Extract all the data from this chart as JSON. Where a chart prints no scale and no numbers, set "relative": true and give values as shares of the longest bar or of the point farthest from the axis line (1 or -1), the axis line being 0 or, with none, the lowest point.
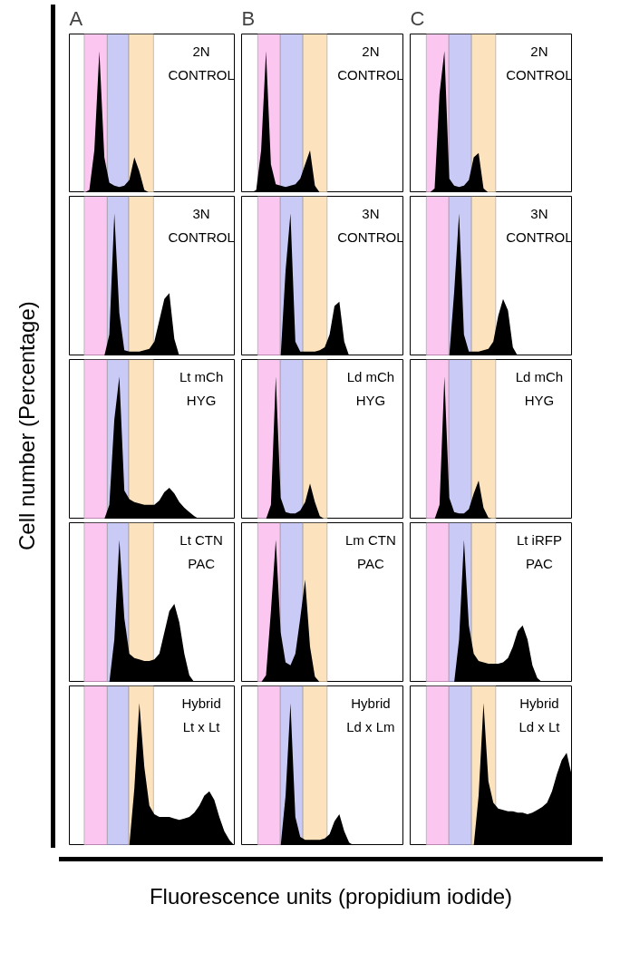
{
  "chart_data": [
    {
      "type": "area",
      "title": "A",
      "relative": true,
      "color": "#000000",
      "tick_labels": false,
      "annotations": [
        "2N",
        "CONTROL"
      ],
      "categories": [
        null,
        null,
        null,
        null,
        null,
        null,
        null,
        null,
        null,
        null,
        null,
        null,
        null,
        null,
        null,
        null,
        null,
        null,
        null,
        null,
        null,
        null,
        null,
        null,
        null,
        null,
        null,
        null,
        null,
        null,
        null,
        null,
        null,
        null
      ],
      "values": [
        0,
        0,
        0,
        0,
        0.02,
        0.3,
        1,
        0.25,
        0.07,
        0.05,
        0.04,
        0.05,
        0.09,
        0.25,
        0.15,
        0.02,
        0,
        0,
        0,
        0,
        0,
        0,
        0,
        0,
        0,
        0,
        0,
        0,
        0,
        0,
        0,
        0,
        0,
        0
      ]
    },
    {
      "type": "area",
      "title": "B",
      "relative": true,
      "color": "#000000",
      "tick_labels": false,
      "annotations": [
        "2N",
        "CONTROL"
      ],
      "categories": [
        null,
        null,
        null,
        null,
        null,
        null,
        null,
        null,
        null,
        null,
        null,
        null,
        null,
        null,
        null,
        null,
        null,
        null,
        null,
        null,
        null,
        null,
        null,
        null,
        null,
        null,
        null,
        null,
        null,
        null,
        null,
        null,
        null,
        null
      ],
      "values": [
        0,
        0,
        0,
        0.02,
        0.3,
        1,
        0.2,
        0.06,
        0.05,
        0.04,
        0.05,
        0.06,
        0.1,
        0.2,
        0.3,
        0.05,
        0,
        0,
        0,
        0,
        0,
        0,
        0,
        0,
        0,
        0,
        0,
        0,
        0,
        0,
        0,
        0,
        0,
        0
      ]
    },
    {
      "type": "area",
      "title": "C",
      "relative": true,
      "color": "#000000",
      "tick_labels": false,
      "annotations": [
        "2N",
        "CONTROL"
      ],
      "categories": [
        null,
        null,
        null,
        null,
        null,
        null,
        null,
        null,
        null,
        null,
        null,
        null,
        null,
        null,
        null,
        null,
        null,
        null,
        null,
        null,
        null,
        null,
        null,
        null,
        null,
        null,
        null,
        null,
        null,
        null,
        null,
        null,
        null,
        null
      ],
      "values": [
        0,
        0,
        0,
        0,
        0,
        0.03,
        0.7,
        1,
        0.1,
        0.05,
        0.04,
        0.05,
        0.09,
        0.25,
        0.28,
        0.03,
        0,
        0,
        0,
        0,
        0,
        0,
        0,
        0,
        0,
        0,
        0,
        0,
        0,
        0,
        0,
        0,
        0,
        0
      ]
    },
    {
      "type": "area",
      "relative": true,
      "color": "#000000",
      "tick_labels": false,
      "annotations": [
        "3N",
        "CONTROL"
      ],
      "categories": [
        null,
        null,
        null,
        null,
        null,
        null,
        null,
        null,
        null,
        null,
        null,
        null,
        null,
        null,
        null,
        null,
        null,
        null,
        null,
        null,
        null,
        null,
        null,
        null,
        null,
        null,
        null,
        null,
        null,
        null,
        null,
        null,
        null,
        null
      ],
      "values": [
        0,
        0,
        0,
        0,
        0,
        0,
        0,
        0,
        0.15,
        1,
        0.3,
        0.04,
        0.03,
        0.03,
        0.03,
        0.04,
        0.05,
        0.1,
        0.25,
        0.4,
        0.44,
        0.12,
        0,
        0,
        0,
        0,
        0,
        0,
        0,
        0,
        0,
        0,
        0,
        0
      ]
    },
    {
      "type": "area",
      "relative": true,
      "color": "#000000",
      "tick_labels": false,
      "annotations": [
        "3N",
        "CONTROL"
      ],
      "categories": [
        null,
        null,
        null,
        null,
        null,
        null,
        null,
        null,
        null,
        null,
        null,
        null,
        null,
        null,
        null,
        null,
        null,
        null,
        null,
        null,
        null,
        null,
        null,
        null,
        null,
        null,
        null,
        null,
        null,
        null,
        null,
        null,
        null,
        null
      ],
      "values": [
        0,
        0,
        0,
        0,
        0,
        0,
        0,
        0,
        0,
        0.6,
        1,
        0.1,
        0.03,
        0.03,
        0.03,
        0.03,
        0.04,
        0.06,
        0.15,
        0.35,
        0.38,
        0.1,
        0,
        0,
        0,
        0,
        0,
        0,
        0,
        0,
        0,
        0,
        0,
        0
      ]
    },
    {
      "type": "area",
      "relative": true,
      "color": "#000000",
      "tick_labels": false,
      "annotations": [
        "3N",
        "CONTROL"
      ],
      "categories": [
        null,
        null,
        null,
        null,
        null,
        null,
        null,
        null,
        null,
        null,
        null,
        null,
        null,
        null,
        null,
        null,
        null,
        null,
        null,
        null,
        null,
        null,
        null,
        null,
        null,
        null,
        null,
        null,
        null,
        null,
        null,
        null,
        null,
        null
      ],
      "values": [
        0,
        0,
        0,
        0,
        0,
        0,
        0,
        0,
        0,
        0.45,
        1,
        0.15,
        0.03,
        0.03,
        0.03,
        0.04,
        0.05,
        0.1,
        0.28,
        0.4,
        0.32,
        0.06,
        0,
        0,
        0,
        0,
        0,
        0,
        0,
        0,
        0,
        0,
        0,
        0
      ]
    },
    {
      "type": "area",
      "relative": true,
      "color": "#000000",
      "tick_labels": false,
      "annotations": [
        "Lt mCh",
        "HYG"
      ],
      "categories": [
        null,
        null,
        null,
        null,
        null,
        null,
        null,
        null,
        null,
        null,
        null,
        null,
        null,
        null,
        null,
        null,
        null,
        null,
        null,
        null,
        null,
        null,
        null,
        null,
        null,
        null,
        null,
        null,
        null,
        null,
        null,
        null,
        null,
        null
      ],
      "values": [
        0,
        0,
        0,
        0,
        0,
        0,
        0,
        0,
        0.1,
        0.7,
        1,
        0.2,
        0.14,
        0.12,
        0.11,
        0.1,
        0.1,
        0.1,
        0.13,
        0.19,
        0.22,
        0.18,
        0.12,
        0.08,
        0.05,
        0.02,
        0,
        0,
        0,
        0,
        0,
        0,
        0,
        0
      ]
    },
    {
      "type": "area",
      "relative": true,
      "color": "#000000",
      "tick_labels": false,
      "annotations": [
        "Ld mCh",
        "HYG"
      ],
      "categories": [
        null,
        null,
        null,
        null,
        null,
        null,
        null,
        null,
        null,
        null,
        null,
        null,
        null,
        null,
        null,
        null,
        null,
        null,
        null,
        null,
        null,
        null,
        null,
        null,
        null,
        null,
        null,
        null,
        null,
        null,
        null,
        null,
        null,
        null
      ],
      "values": [
        0,
        0,
        0,
        0,
        0,
        0,
        0.1,
        1,
        0.15,
        0.05,
        0.04,
        0.04,
        0.06,
        0.12,
        0.25,
        0.12,
        0.02,
        0,
        0,
        0,
        0,
        0,
        0,
        0,
        0,
        0,
        0,
        0,
        0,
        0,
        0,
        0,
        0,
        0
      ]
    },
    {
      "type": "area",
      "relative": true,
      "color": "#000000",
      "tick_labels": false,
      "annotations": [
        "Ld mCh",
        "HYG"
      ],
      "categories": [
        null,
        null,
        null,
        null,
        null,
        null,
        null,
        null,
        null,
        null,
        null,
        null,
        null,
        null,
        null,
        null,
        null,
        null,
        null,
        null,
        null,
        null,
        null,
        null,
        null,
        null,
        null,
        null,
        null,
        null,
        null,
        null,
        null,
        null
      ],
      "values": [
        0,
        0,
        0,
        0,
        0,
        0,
        0.1,
        1,
        0.15,
        0.05,
        0.04,
        0.04,
        0.07,
        0.18,
        0.27,
        0.08,
        0.01,
        0,
        0,
        0,
        0,
        0,
        0,
        0,
        0,
        0,
        0,
        0,
        0,
        0,
        0,
        0,
        0,
        0
      ]
    },
    {
      "type": "area",
      "relative": true,
      "color": "#000000",
      "tick_labels": false,
      "annotations": [
        "Lt CTN",
        "PAC"
      ],
      "categories": [
        null,
        null,
        null,
        null,
        null,
        null,
        null,
        null,
        null,
        null,
        null,
        null,
        null,
        null,
        null,
        null,
        null,
        null,
        null,
        null,
        null,
        null,
        null,
        null,
        null,
        null,
        null,
        null,
        null,
        null,
        null,
        null,
        null,
        null
      ],
      "values": [
        0,
        0,
        0,
        0,
        0,
        0,
        0,
        0,
        0,
        0.3,
        1,
        0.45,
        0.2,
        0.17,
        0.16,
        0.15,
        0.15,
        0.16,
        0.2,
        0.35,
        0.5,
        0.55,
        0.42,
        0.2,
        0.05,
        0,
        0,
        0,
        0,
        0,
        0,
        0,
        0,
        0
      ]
    },
    {
      "type": "area",
      "relative": true,
      "color": "#000000",
      "tick_labels": false,
      "annotations": [
        "Lm CTN",
        "PAC"
      ],
      "categories": [
        null,
        null,
        null,
        null,
        null,
        null,
        null,
        null,
        null,
        null,
        null,
        null,
        null,
        null,
        null,
        null,
        null,
        null,
        null,
        null,
        null,
        null,
        null,
        null,
        null,
        null,
        null,
        null,
        null,
        null,
        null,
        null,
        null,
        null
      ],
      "values": [
        0,
        0,
        0,
        0,
        0,
        0.05,
        0.5,
        1,
        0.35,
        0.14,
        0.12,
        0.2,
        0.45,
        0.72,
        0.25,
        0.04,
        0,
        0,
        0,
        0,
        0,
        0,
        0,
        0,
        0,
        0,
        0,
        0,
        0,
        0,
        0,
        0,
        0,
        0
      ]
    },
    {
      "type": "area",
      "relative": true,
      "color": "#000000",
      "tick_labels": false,
      "annotations": [
        "Lt iRFP",
        "PAC"
      ],
      "categories": [
        null,
        null,
        null,
        null,
        null,
        null,
        null,
        null,
        null,
        null,
        null,
        null,
        null,
        null,
        null,
        null,
        null,
        null,
        null,
        null,
        null,
        null,
        null,
        null,
        null,
        null,
        null,
        null,
        null,
        null,
        null,
        null,
        null,
        null
      ],
      "values": [
        0,
        0,
        0,
        0,
        0,
        0,
        0,
        0,
        0,
        0,
        0.3,
        1,
        0.4,
        0.2,
        0.15,
        0.14,
        0.13,
        0.13,
        0.13,
        0.14,
        0.17,
        0.25,
        0.36,
        0.4,
        0.3,
        0.12,
        0.03,
        0,
        0,
        0,
        0,
        0,
        0,
        0
      ]
    },
    {
      "type": "area",
      "relative": true,
      "color": "#000000",
      "tick_labels": false,
      "annotations": [
        "Hybrid",
        "Lt x Lt"
      ],
      "categories": [
        null,
        null,
        null,
        null,
        null,
        null,
        null,
        null,
        null,
        null,
        null,
        null,
        null,
        null,
        null,
        null,
        null,
        null,
        null,
        null,
        null,
        null,
        null,
        null,
        null,
        null,
        null,
        null,
        null,
        null,
        null,
        null,
        null,
        null
      ],
      "values": [
        0,
        0,
        0,
        0,
        0,
        0,
        0,
        0,
        0,
        0,
        0,
        0,
        0,
        0.4,
        1,
        0.55,
        0.28,
        0.22,
        0.2,
        0.2,
        0.2,
        0.19,
        0.18,
        0.19,
        0.2,
        0.23,
        0.28,
        0.35,
        0.38,
        0.32,
        0.2,
        0.1,
        0.04,
        0
      ]
    },
    {
      "type": "area",
      "relative": true,
      "color": "#000000",
      "tick_labels": false,
      "annotations": [
        "Hybrid",
        "Ld x Lm"
      ],
      "categories": [
        null,
        null,
        null,
        null,
        null,
        null,
        null,
        null,
        null,
        null,
        null,
        null,
        null,
        null,
        null,
        null,
        null,
        null,
        null,
        null,
        null,
        null,
        null,
        null,
        null,
        null,
        null,
        null,
        null,
        null,
        null,
        null,
        null,
        null
      ],
      "values": [
        0,
        0,
        0,
        0,
        0,
        0,
        0,
        0,
        0,
        0.35,
        1,
        0.2,
        0.06,
        0.04,
        0.04,
        0.04,
        0.04,
        0.05,
        0.08,
        0.17,
        0.22,
        0.1,
        0.02,
        0,
        0,
        0,
        0,
        0,
        0,
        0,
        0,
        0,
        0,
        0
      ]
    },
    {
      "type": "area",
      "relative": true,
      "color": "#000000",
      "tick_labels": false,
      "annotations": [
        "Hybrid",
        "Ld x Lt"
      ],
      "categories": [
        null,
        null,
        null,
        null,
        null,
        null,
        null,
        null,
        null,
        null,
        null,
        null,
        null,
        null,
        null,
        null,
        null,
        null,
        null,
        null,
        null,
        null,
        null,
        null,
        null,
        null,
        null,
        null,
        null,
        null,
        null,
        null,
        null,
        null
      ],
      "values": [
        0,
        0,
        0,
        0,
        0,
        0,
        0,
        0,
        0,
        0,
        0,
        0,
        0,
        0,
        0.35,
        1,
        0.45,
        0.3,
        0.26,
        0.25,
        0.24,
        0.24,
        0.23,
        0.23,
        0.22,
        0.23,
        0.25,
        0.27,
        0.3,
        0.38,
        0.5,
        0.6,
        0.65,
        0.5
      ]
    },
    {
      "type": "other",
      "ylabel": "Cell number (Percentage)",
      "xlabel": "Fluorescence units (propidium iodide)"
    }
  ]
}
